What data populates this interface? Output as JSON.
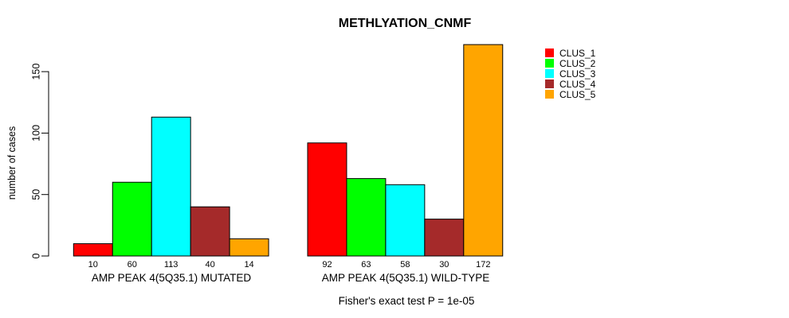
{
  "title": "METHLYATION_CNMF",
  "footer": "Fisher's exact test P = 1e-05",
  "chart_data": {
    "type": "bar",
    "title": "METHLYATION_CNMF",
    "ylabel": "number of cases",
    "xlabel": "",
    "yticks": [
      0,
      50,
      100,
      150
    ],
    "ylim": [
      0,
      172
    ],
    "grid": false,
    "legend_position": "right",
    "bar_value_labels": true,
    "categories": [
      "AMP PEAK 4(5Q35.1) MUTATED",
      "AMP PEAK 4(5Q35.1) WILD-TYPE"
    ],
    "groups": [
      {
        "label": "AMP PEAK 4(5Q35.1) MUTATED",
        "values": [
          10,
          60,
          113,
          40,
          14
        ]
      },
      {
        "label": "AMP PEAK 4(5Q35.1) WILD-TYPE",
        "values": [
          92,
          63,
          58,
          30,
          172
        ]
      }
    ],
    "series": [
      {
        "name": "CLUS_1",
        "color": "#ff0000"
      },
      {
        "name": "CLUS_2",
        "color": "#00ff00"
      },
      {
        "name": "CLUS_3",
        "color": "#00ffff"
      },
      {
        "name": "CLUS_4",
        "color": "#a52a2a"
      },
      {
        "name": "CLUS_5",
        "color": "#ffa500"
      }
    ],
    "annotation": "Fisher's exact test P = 1e-05"
  }
}
